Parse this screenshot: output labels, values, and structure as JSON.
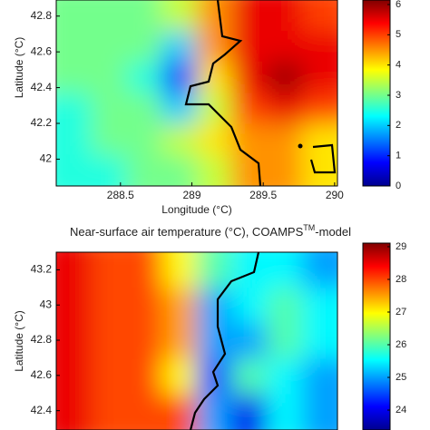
{
  "chart_data": [
    {
      "type": "heatmap",
      "xlabel": "Longitude (°C)",
      "ylabel": "Latitude (°C)",
      "xlim": [
        288.05,
        290.02
      ],
      "ylim": [
        41.85,
        42.89
      ],
      "xticks": [
        288.5,
        289,
        289.5,
        290
      ],
      "yticks": [
        42,
        42.2,
        42.4,
        42.6,
        42.8
      ],
      "clim": [
        0,
        6.15
      ],
      "cticks": [
        0,
        1,
        2,
        3,
        4,
        5,
        6
      ],
      "z": [
        [
          3,
          3,
          3,
          3.5,
          4.5,
          5.5,
          5.5,
          5
        ],
        [
          3,
          3,
          3,
          2,
          4.5,
          5.5,
          5.5,
          5.5
        ],
        [
          3,
          3,
          2.5,
          1,
          4,
          5.5,
          6,
          5.5
        ],
        [
          2.5,
          3,
          3,
          2,
          3.5,
          5,
          5.5,
          5
        ],
        [
          2.5,
          3,
          3,
          3.5,
          4,
          4.5,
          4.5,
          4
        ],
        [
          2.5,
          2.5,
          3,
          3,
          3.5,
          4.5,
          4.5,
          4
        ]
      ]
    },
    {
      "type": "heatmap",
      "title": "Near-surface air temperature (°C), COAMPS",
      "title_superscript": "TM",
      "title_suffix": "-model",
      "ylabel": "Latitude (°C)",
      "xlim": [
        288.05,
        290.02
      ],
      "ylim": [
        42.29,
        43.3
      ],
      "yticks": [
        42.4,
        42.6,
        42.8,
        43,
        43.2
      ],
      "clim": [
        23.39,
        29.11
      ],
      "cticks": [
        24,
        25,
        26,
        27,
        28,
        29
      ],
      "z": [
        [
          28.5,
          28,
          28,
          27,
          26,
          25.5,
          25.5,
          25
        ],
        [
          28.5,
          28,
          28,
          27.5,
          25,
          25.5,
          26,
          25.5
        ],
        [
          28.5,
          28,
          28,
          27.5,
          25,
          25,
          26,
          25.5
        ],
        [
          28.5,
          28,
          28,
          27,
          24.5,
          26,
          25.5,
          25
        ],
        [
          28.5,
          28,
          28,
          28,
          25,
          24,
          25.5,
          25
        ]
      ]
    }
  ]
}
